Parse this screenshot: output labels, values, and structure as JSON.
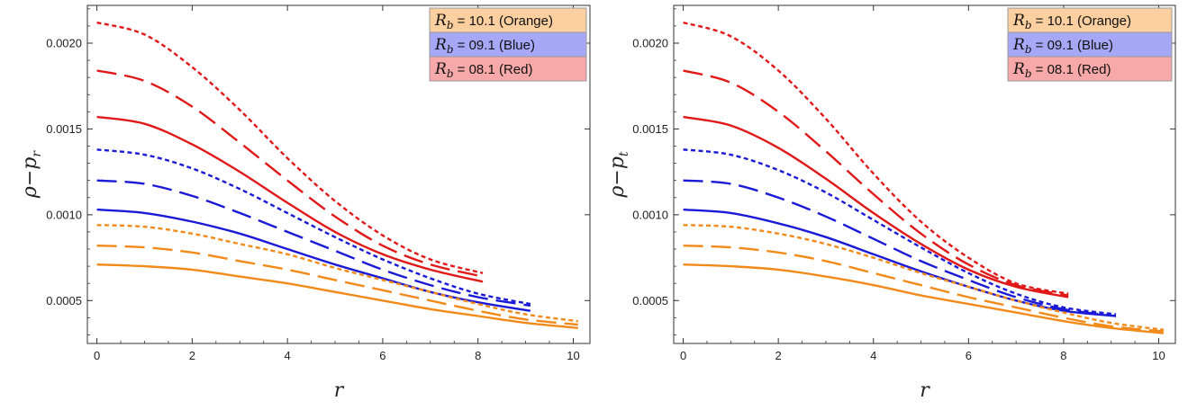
{
  "colors": {
    "Orange": "#f28a1a",
    "Blue": "#1a1ad6",
    "Red": "#e01818",
    "legend_Orange": "#fbcf9f",
    "legend_Blue": "#a7a7f7",
    "legend_Red": "#f7a8a8"
  },
  "chart_data": [
    {
      "type": "line",
      "title": "",
      "xlabel": "r",
      "ylabel": "ρ−p_r",
      "ylabel_main": "ρ−p",
      "ylabel_sub": "r",
      "xlim": [
        -0.2,
        10.35
      ],
      "ylim": [
        0.00025,
        0.00222
      ],
      "xticks": [
        0,
        2,
        4,
        6,
        8,
        10
      ],
      "xtick_labels": [
        "0",
        "2",
        "4",
        "6",
        "8",
        "10"
      ],
      "yticks": [
        0.0005,
        0.001,
        0.0015,
        0.002
      ],
      "ytick_labels": [
        "0.0005",
        "0.0010",
        "0.0015",
        "0.0020"
      ],
      "legend": [
        {
          "symbol": "R",
          "sub": "b",
          "text": " = 10.1 (Orange)",
          "color": "Orange"
        },
        {
          "symbol": "R",
          "sub": "b",
          "text": " = 09.1 (Blue)",
          "color": "Blue"
        },
        {
          "symbol": "R",
          "sub": "b",
          "text": " = 08.1 (Red)",
          "color": "Red"
        }
      ],
      "legend_position": "top-right",
      "series": [
        {
          "color": "Red",
          "style": "dotted",
          "x": [
            0,
            1,
            2,
            3,
            4,
            5,
            6,
            7,
            8.1
          ],
          "y": [
            0.00212,
            0.00205,
            0.00186,
            0.00161,
            0.00133,
            0.00108,
            0.00088,
            0.00074,
            0.00066
          ]
        },
        {
          "color": "Red",
          "style": "dashed",
          "x": [
            0,
            1,
            2,
            3,
            4,
            5,
            6,
            7,
            8.1
          ],
          "y": [
            0.00184,
            0.00178,
            0.00163,
            0.00142,
            0.0012,
            0.00099,
            0.00082,
            0.00071,
            0.00064
          ]
        },
        {
          "color": "Red",
          "style": "solid",
          "x": [
            0,
            1,
            2,
            3,
            4,
            5,
            6,
            7,
            8.1
          ],
          "y": [
            0.00157,
            0.00153,
            0.00141,
            0.00125,
            0.00107,
            0.0009,
            0.00077,
            0.00068,
            0.00061
          ]
        },
        {
          "color": "Blue",
          "style": "dotted",
          "x": [
            0,
            1,
            2,
            3,
            4,
            5,
            6,
            7,
            8,
            9.1
          ],
          "y": [
            0.00138,
            0.00135,
            0.00127,
            0.00115,
            0.00101,
            0.00087,
            0.00074,
            0.00063,
            0.00054,
            0.00048
          ]
        },
        {
          "color": "Blue",
          "style": "dashed",
          "x": [
            0,
            1,
            2,
            3,
            4,
            5,
            6,
            7,
            8,
            9.1
          ],
          "y": [
            0.0012,
            0.00118,
            0.00111,
            0.00101,
            0.0009,
            0.00079,
            0.00068,
            0.00059,
            0.00052,
            0.00047
          ]
        },
        {
          "color": "Blue",
          "style": "solid",
          "x": [
            0,
            1,
            2,
            3,
            4,
            5,
            6,
            7,
            8,
            9.1
          ],
          "y": [
            0.00103,
            0.00101,
            0.00096,
            0.00089,
            0.0008,
            0.00071,
            0.00063,
            0.00055,
            0.00049,
            0.00044
          ]
        },
        {
          "color": "Orange",
          "style": "dotted",
          "x": [
            0,
            1,
            2,
            3,
            4,
            5,
            6,
            7,
            8,
            9,
            10.1
          ],
          "y": [
            0.00094,
            0.00093,
            0.00089,
            0.00083,
            0.00077,
            0.00069,
            0.00062,
            0.00055,
            0.00048,
            0.00042,
            0.00038
          ]
        },
        {
          "color": "Orange",
          "style": "dashed",
          "x": [
            0,
            1,
            2,
            3,
            4,
            5,
            6,
            7,
            8,
            9,
            10.1
          ],
          "y": [
            0.00082,
            0.00081,
            0.00078,
            0.00073,
            0.00068,
            0.00062,
            0.00056,
            0.0005,
            0.00044,
            0.00039,
            0.00036
          ]
        },
        {
          "color": "Orange",
          "style": "solid",
          "x": [
            0,
            1,
            2,
            3,
            4,
            5,
            6,
            7,
            8,
            9,
            10.1
          ],
          "y": [
            0.00071,
            0.0007,
            0.00068,
            0.00064,
            0.0006,
            0.00055,
            0.0005,
            0.00045,
            0.00041,
            0.00037,
            0.00034
          ]
        }
      ]
    },
    {
      "type": "line",
      "title": "",
      "xlabel": "r",
      "ylabel": "ρ−p_t",
      "ylabel_main": "ρ−p",
      "ylabel_sub": "t",
      "xlim": [
        -0.2,
        10.35
      ],
      "ylim": [
        0.00025,
        0.00222
      ],
      "xticks": [
        0,
        2,
        4,
        6,
        8,
        10
      ],
      "xtick_labels": [
        "0",
        "2",
        "4",
        "6",
        "8",
        "10"
      ],
      "yticks": [
        0.0005,
        0.001,
        0.0015,
        0.002
      ],
      "ytick_labels": [
        "0.0005",
        "0.0010",
        "0.0015",
        "0.0020"
      ],
      "legend": [
        {
          "symbol": "R",
          "sub": "b",
          "text": " = 10.1 (Orange)",
          "color": "Orange"
        },
        {
          "symbol": "R",
          "sub": "b",
          "text": " = 09.1 (Blue)",
          "color": "Blue"
        },
        {
          "symbol": "R",
          "sub": "b",
          "text": " = 08.1 (Red)",
          "color": "Red"
        }
      ],
      "legend_position": "top-right",
      "series": [
        {
          "color": "Red",
          "style": "dotted",
          "x": [
            0,
            1,
            2,
            3,
            4,
            5,
            6,
            7,
            8.1
          ],
          "y": [
            0.00212,
            0.00204,
            0.00184,
            0.00156,
            0.00124,
            0.00096,
            0.00075,
            0.0006,
            0.00054
          ]
        },
        {
          "color": "Red",
          "style": "dashed",
          "x": [
            0,
            1,
            2,
            3,
            4,
            5,
            6,
            7,
            8.1
          ],
          "y": [
            0.00184,
            0.00177,
            0.0016,
            0.00137,
            0.00112,
            0.00089,
            0.00071,
            0.00059,
            0.00053
          ]
        },
        {
          "color": "Red",
          "style": "solid",
          "x": [
            0,
            1,
            2,
            3,
            4,
            5,
            6,
            7,
            8.1
          ],
          "y": [
            0.00157,
            0.00152,
            0.00139,
            0.00121,
            0.00101,
            0.00083,
            0.00068,
            0.00058,
            0.00052
          ]
        },
        {
          "color": "Blue",
          "style": "dotted",
          "x": [
            0,
            1,
            2,
            3,
            4,
            5,
            6,
            7,
            8,
            9.1
          ],
          "y": [
            0.00138,
            0.00135,
            0.00126,
            0.00113,
            0.00097,
            0.00081,
            0.00066,
            0.00054,
            0.00046,
            0.00042
          ]
        },
        {
          "color": "Blue",
          "style": "dashed",
          "x": [
            0,
            1,
            2,
            3,
            4,
            5,
            6,
            7,
            8,
            9.1
          ],
          "y": [
            0.0012,
            0.00118,
            0.0011,
            0.00099,
            0.00086,
            0.00073,
            0.00062,
            0.00052,
            0.00045,
            0.00041
          ]
        },
        {
          "color": "Blue",
          "style": "solid",
          "x": [
            0,
            1,
            2,
            3,
            4,
            5,
            6,
            7,
            8,
            9.1
          ],
          "y": [
            0.00103,
            0.00101,
            0.00095,
            0.00087,
            0.00077,
            0.00067,
            0.00058,
            0.0005,
            0.00044,
            0.00041
          ]
        },
        {
          "color": "Orange",
          "style": "dotted",
          "x": [
            0,
            1,
            2,
            3,
            4,
            5,
            6,
            7,
            8,
            9,
            10.1
          ],
          "y": [
            0.00094,
            0.00093,
            0.00089,
            0.00083,
            0.00075,
            0.00066,
            0.00058,
            0.0005,
            0.00043,
            0.00037,
            0.00033
          ]
        },
        {
          "color": "Orange",
          "style": "dashed",
          "x": [
            0,
            1,
            2,
            3,
            4,
            5,
            6,
            7,
            8,
            9,
            10.1
          ],
          "y": [
            0.00082,
            0.00081,
            0.00078,
            0.00073,
            0.00066,
            0.00059,
            0.00052,
            0.00046,
            0.0004,
            0.00035,
            0.00032
          ]
        },
        {
          "color": "Orange",
          "style": "solid",
          "x": [
            0,
            1,
            2,
            3,
            4,
            5,
            6,
            7,
            8,
            9,
            10.1
          ],
          "y": [
            0.00071,
            0.0007,
            0.00068,
            0.00064,
            0.00059,
            0.00053,
            0.00048,
            0.00043,
            0.00038,
            0.00034,
            0.00031
          ]
        }
      ]
    }
  ]
}
